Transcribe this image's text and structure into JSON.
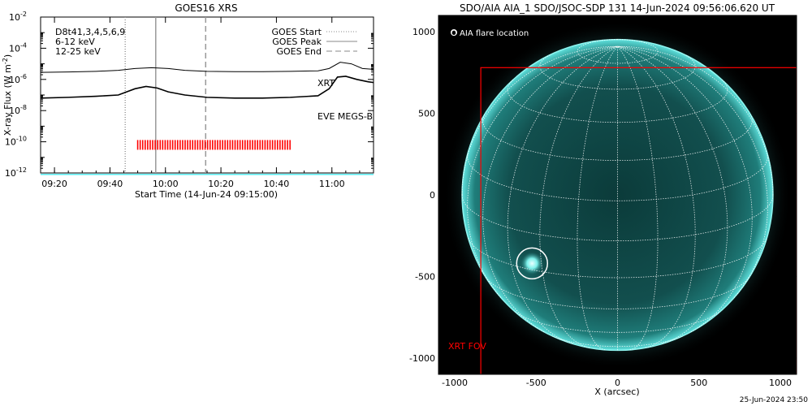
{
  "chart_data": [
    {
      "type": "line",
      "title": "GOES16 XRS",
      "xlabel": "Start Time (14-Jun-24 09:15:00)",
      "ylabel": "X-ray Flux (W m",
      "ylabel_sup": "-2",
      "ylabel_close": ")",
      "x_range_minutes": [
        0,
        120
      ],
      "y_scale": "log",
      "ylim_exp": [
        -12,
        -2
      ],
      "x_ticks": [
        {
          "min": 5,
          "label": "09:20"
        },
        {
          "min": 25,
          "label": "09:40"
        },
        {
          "min": 45,
          "label": "10:00"
        },
        {
          "min": 65,
          "label": "10:20"
        },
        {
          "min": 85,
          "label": "10:40"
        },
        {
          "min": 105,
          "label": "11:00"
        }
      ],
      "y_ticks": [
        {
          "exp": -12,
          "label": "10",
          "sup": "-12"
        },
        {
          "exp": -10,
          "label": "10",
          "sup": "-10"
        },
        {
          "exp": -8,
          "label": "10",
          "sup": "-8"
        },
        {
          "exp": -6,
          "label": "10",
          "sup": "-6"
        },
        {
          "exp": -4,
          "label": "10",
          "sup": "-4"
        },
        {
          "exp": -2,
          "label": "10",
          "sup": "-2"
        }
      ],
      "legend_left": [
        {
          "text": "D8t41,3,4,5,6,9",
          "color": "#000000"
        },
        {
          "text": "6-12 keV",
          "color": "#ff00ff"
        },
        {
          "text": "12-25 keV",
          "color": "#00cc00"
        }
      ],
      "legend_right": [
        {
          "text": "GOES Start",
          "style": "dotted"
        },
        {
          "text": "GOES Peak",
          "style": "solid"
        },
        {
          "text": "GOES End",
          "style": "dashed"
        }
      ],
      "annotations": [
        {
          "text": "XRT",
          "color": "#ff0000"
        },
        {
          "text": "EVE MEGS-B",
          "color": "#00e5ee"
        }
      ],
      "series": [
        {
          "color": "#000000",
          "points": [
            [
              0,
              -5.55
            ],
            [
              10,
              -5.52
            ],
            [
              20,
              -5.48
            ],
            [
              28,
              -5.42
            ],
            [
              34,
              -5.3
            ],
            [
              40,
              -5.25
            ],
            [
              46,
              -5.3
            ],
            [
              52,
              -5.42
            ],
            [
              60,
              -5.48
            ],
            [
              70,
              -5.5
            ],
            [
              80,
              -5.5
            ],
            [
              90,
              -5.48
            ],
            [
              100,
              -5.45
            ],
            [
              104,
              -5.3
            ],
            [
              108,
              -4.9
            ],
            [
              112,
              -5.0
            ],
            [
              116,
              -5.3
            ],
            [
              120,
              -5.35
            ]
          ]
        },
        {
          "color": "#000000",
          "points": [
            [
              0,
              -7.2
            ],
            [
              10,
              -7.15
            ],
            [
              20,
              -7.08
            ],
            [
              28,
              -7.0
            ],
            [
              34,
              -6.6
            ],
            [
              38,
              -6.45
            ],
            [
              42,
              -6.55
            ],
            [
              46,
              -6.8
            ],
            [
              52,
              -7.0
            ],
            [
              60,
              -7.15
            ],
            [
              70,
              -7.2
            ],
            [
              80,
              -7.2
            ],
            [
              90,
              -7.15
            ],
            [
              100,
              -7.05
            ],
            [
              104,
              -6.6
            ],
            [
              107,
              -5.85
            ],
            [
              110,
              -5.8
            ],
            [
              114,
              -6.0
            ],
            [
              118,
              -6.15
            ],
            [
              120,
              -6.2
            ]
          ]
        },
        {
          "color": "#00e5ee",
          "points": [
            [
              0,
              -12.1
            ],
            [
              120,
              -12.1
            ]
          ]
        }
      ],
      "vlines": [
        {
          "min": 30.5,
          "style": "dotted"
        },
        {
          "min": 41.5,
          "style": "solid"
        },
        {
          "min": 59.5,
          "style": "dashed"
        }
      ],
      "xrt_obs": {
        "start_min": 35,
        "end_min": 90.5,
        "exp": -10.2
      }
    },
    {
      "type": "image",
      "title": "SDO/AIA AIA_1 SDO/JSOC-SDP 131 14-Jun-2024 09:56:06.620 UT",
      "xlabel": "X (arcsec)",
      "ylabel": "",
      "xlim": [
        -1100,
        1100
      ],
      "ylim": [
        -1100,
        1100
      ],
      "x_ticks": [
        -1000,
        -500,
        0,
        500,
        1000
      ],
      "y_ticks": [
        -1000,
        -500,
        0,
        500,
        1000
      ],
      "solar_radius_arcsec": 955,
      "legend": "O AIA flare location",
      "flare_location": {
        "x": -525,
        "y": -420
      },
      "xrt_fov": {
        "x0": -840,
        "y0": -1110,
        "x1": 1100,
        "y1": 780,
        "label": "XRT FOV"
      }
    }
  ],
  "footer": {
    "timestamp": "25-Jun-2024 23:50"
  }
}
